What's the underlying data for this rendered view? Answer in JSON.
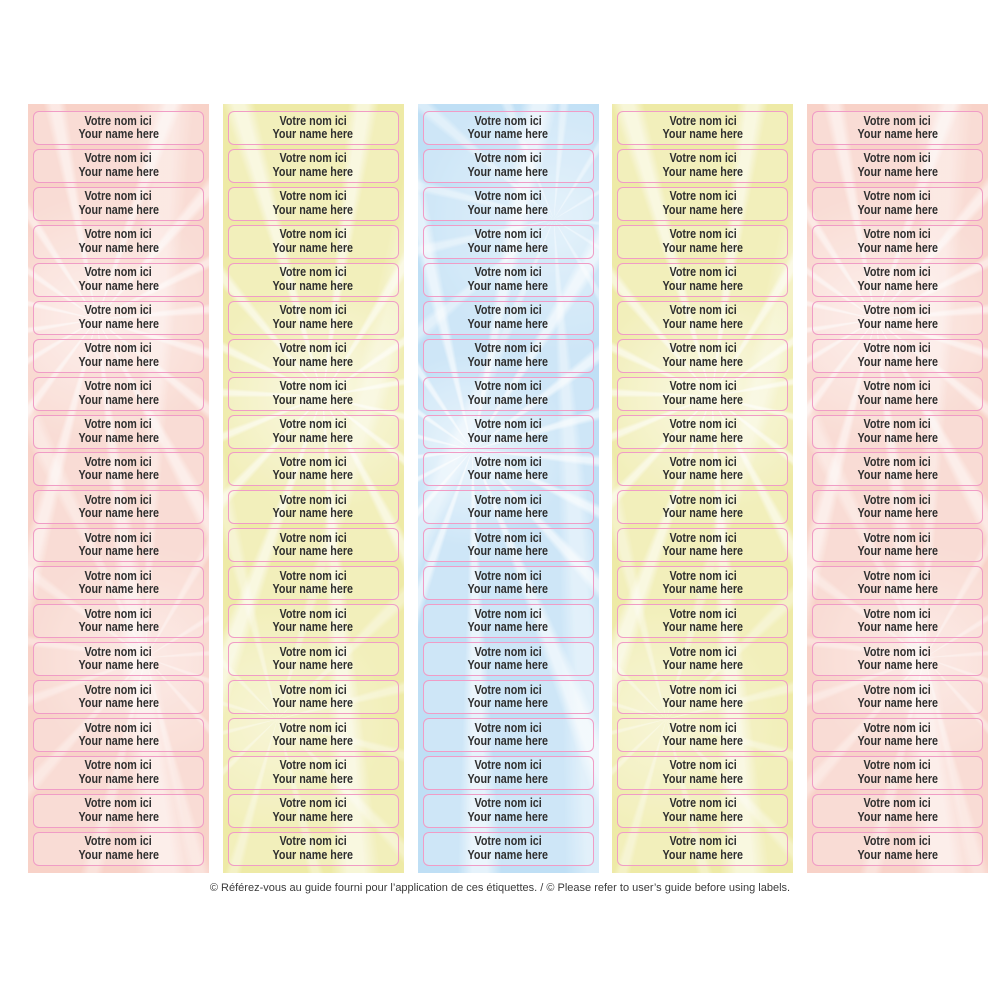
{
  "sheet": {
    "label": {
      "line1": "Votre nom ici",
      "line2": "Your name here"
    },
    "labels_per_column": 20,
    "label_border_color": "#f09cc6",
    "label_text_color": "#2f2f2f",
    "columns": [
      {
        "name": "column-1",
        "theme": "pink",
        "base_color": "#f8d2c8"
      },
      {
        "name": "column-2",
        "theme": "yellow",
        "base_color": "#eeeaa6"
      },
      {
        "name": "column-3",
        "theme": "blue",
        "base_color": "#bfdff5"
      },
      {
        "name": "column-4",
        "theme": "yellow",
        "base_color": "#eeeaa6"
      },
      {
        "name": "column-5",
        "theme": "pink",
        "base_color": "#f8d2c8"
      }
    ]
  },
  "footer": {
    "note": "© Référez-vous au guide fourni pour l’application de ces étiquettes. / © Please refer to user’s guide before using labels."
  }
}
